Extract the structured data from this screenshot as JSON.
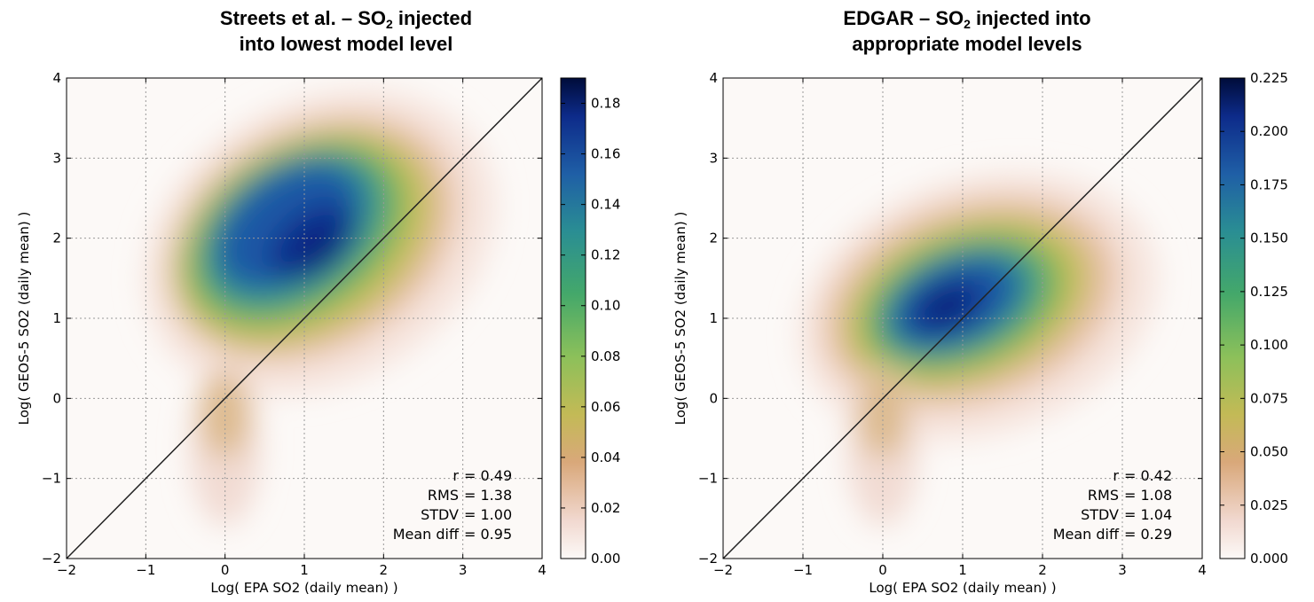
{
  "chart_data": [
    {
      "type": "heatmap",
      "title_main": "Streets et al. – SO",
      "title_sub": "2",
      "title_rest": " injected",
      "title_line2": "into lowest model level",
      "xlabel": "Log( EPA SO2 (daily mean) )",
      "ylabel": "Log( GEOS-5 SO2 (daily mean) )",
      "xlim": [
        -2,
        4
      ],
      "ylim": [
        -2,
        4
      ],
      "xticks": [
        "−2",
        "−1",
        "0",
        "1",
        "2",
        "3",
        "4"
      ],
      "yticks": [
        "−2",
        "−1",
        "0",
        "1",
        "2",
        "3",
        "4"
      ],
      "grid": true,
      "colormap": "gist_earth_r",
      "colorbar": {
        "min": 0.0,
        "max": 0.19,
        "ticks": [
          0.0,
          0.02,
          0.04,
          0.06,
          0.08,
          0.1,
          0.12,
          0.14,
          0.16,
          0.18
        ],
        "tick_labels": [
          "0.00",
          "0.02",
          "0.04",
          "0.06",
          "0.08",
          "0.10",
          "0.12",
          "0.14",
          "0.16",
          "0.18"
        ]
      },
      "density_peak": {
        "x": 1.2,
        "y": 1.85,
        "value": 0.19
      },
      "one_to_one_line": true,
      "stats": [
        {
          "label": "r",
          "value": "0.49"
        },
        {
          "label": "RMS",
          "value": "1.38"
        },
        {
          "label": "STDV",
          "value": "1.00"
        },
        {
          "label": "Mean diff",
          "value": "0.95"
        }
      ]
    },
    {
      "type": "heatmap",
      "title_main": "EDGAR – SO",
      "title_sub": "2",
      "title_rest": " injected into",
      "title_line2": "appropriate model levels",
      "xlabel": "Log( EPA SO2 (daily mean) )",
      "ylabel": "Log( GEOS-5 SO2 (daily mean) )",
      "xlim": [
        -2,
        4
      ],
      "ylim": [
        -2,
        4
      ],
      "xticks": [
        "−2",
        "−1",
        "0",
        "1",
        "2",
        "3",
        "4"
      ],
      "yticks": [
        "−2",
        "−1",
        "0",
        "1",
        "2",
        "3",
        "4"
      ],
      "grid": true,
      "colormap": "gist_earth_r",
      "colorbar": {
        "min": 0.0,
        "max": 0.225,
        "ticks": [
          0.0,
          0.025,
          0.05,
          0.075,
          0.1,
          0.125,
          0.15,
          0.175,
          0.2,
          0.225
        ],
        "tick_labels": [
          "0.000",
          "0.025",
          "0.050",
          "0.075",
          "0.100",
          "0.125",
          "0.150",
          "0.175",
          "0.200",
          "0.225"
        ]
      },
      "density_peak": {
        "x": 0.8,
        "y": 1.15,
        "value": 0.225
      },
      "one_to_one_line": true,
      "stats": [
        {
          "label": "r",
          "value": "0.42"
        },
        {
          "label": "RMS",
          "value": "1.08"
        },
        {
          "label": "STDV",
          "value": "1.04"
        },
        {
          "label": "Mean diff",
          "value": "0.29"
        }
      ]
    }
  ]
}
